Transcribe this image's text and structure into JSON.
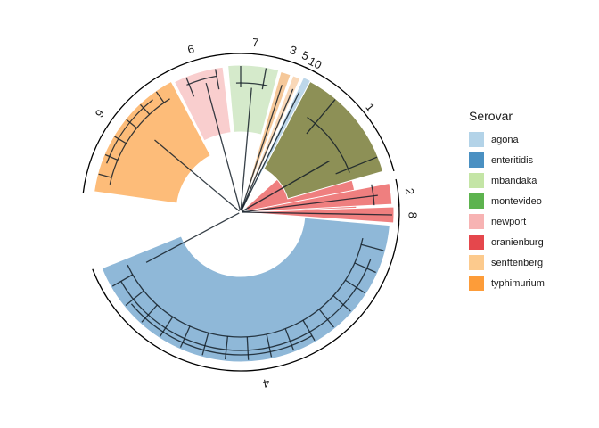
{
  "chart_data": {
    "type": "circular-dendrogram",
    "legend": {
      "title": "Serovar",
      "position": "right",
      "items": [
        {
          "label": "agona",
          "color": "#b3d3e8"
        },
        {
          "label": "enteritidis",
          "color": "#4a90c2"
        },
        {
          "label": "mbandaka",
          "color": "#c4e5a6"
        },
        {
          "label": "montevideo",
          "color": "#5db34e"
        },
        {
          "label": "newport",
          "color": "#f7b3b3"
        },
        {
          "label": "oranienburg",
          "color": "#e5474c"
        },
        {
          "label": "senftenberg",
          "color": "#fcca8d"
        },
        {
          "label": "typhimurium",
          "color": "#fd9c39"
        }
      ]
    },
    "clusters": [
      {
        "label": "4",
        "color": "#8fb8d8"
      },
      {
        "label": "8",
        "color": "#ef7f7f"
      },
      {
        "label": "2",
        "color": "#ef7f7f"
      },
      {
        "label": "1",
        "color": "#8d9056"
      },
      {
        "label": "10",
        "color": "#bdd7ea"
      },
      {
        "label": "5",
        "color": "#f9d8b8"
      },
      {
        "label": "3",
        "color": "#f5c89a"
      },
      {
        "label": "7",
        "color": "#d5eacb"
      },
      {
        "label": "6",
        "color": "#f9cece"
      },
      {
        "label": "9",
        "color": "#fdbc79"
      }
    ]
  }
}
